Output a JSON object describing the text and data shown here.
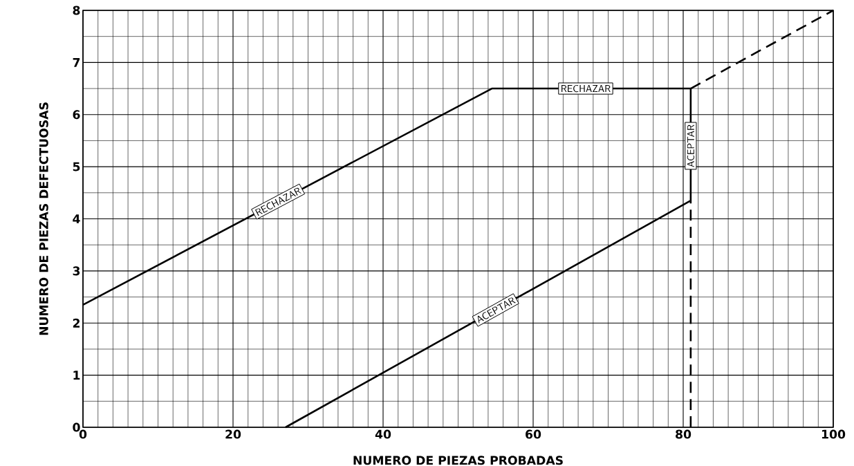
{
  "chart_data": {
    "type": "line",
    "xlabel": "NUMERO DE PIEZAS PROBADAS",
    "ylabel": "NUMERO DE PIEZAS DEFECTUOSAS",
    "xlim": [
      0,
      100
    ],
    "ylim": [
      0,
      8
    ],
    "xticks": [
      0,
      20,
      40,
      60,
      80,
      100
    ],
    "yticks": [
      0,
      1,
      2,
      3,
      4,
      5,
      6,
      7,
      8
    ],
    "grid": true,
    "marker": "none",
    "series": [
      {
        "color": "#000000",
        "x": [
          0,
          54.5,
          81
        ],
        "values": [
          2.35,
          6.5,
          6.5
        ],
        "line_style": "solid"
      },
      {
        "color": "#000000",
        "x": [
          27,
          81,
          81
        ],
        "values": [
          0,
          4.35,
          6.5
        ],
        "line_style": "solid"
      },
      {
        "color": "#000000",
        "x": [
          81,
          100
        ],
        "values": [
          6.5,
          8
        ],
        "line_style": "dashed"
      },
      {
        "color": "#000000",
        "x": [
          81,
          81
        ],
        "values": [
          0,
          4.35
        ],
        "line_style": "dashed"
      }
    ],
    "annotations": [
      {
        "text": "RECHAZAR",
        "x": 26,
        "y": 4.33
      },
      {
        "text": "RECHAZAR",
        "x": 67,
        "y": 6.5
      },
      {
        "text": "ACEPTAR",
        "x": 81,
        "y": 5.4
      },
      {
        "text": "ACEPTAR",
        "x": 55,
        "y": 2.25
      }
    ]
  }
}
